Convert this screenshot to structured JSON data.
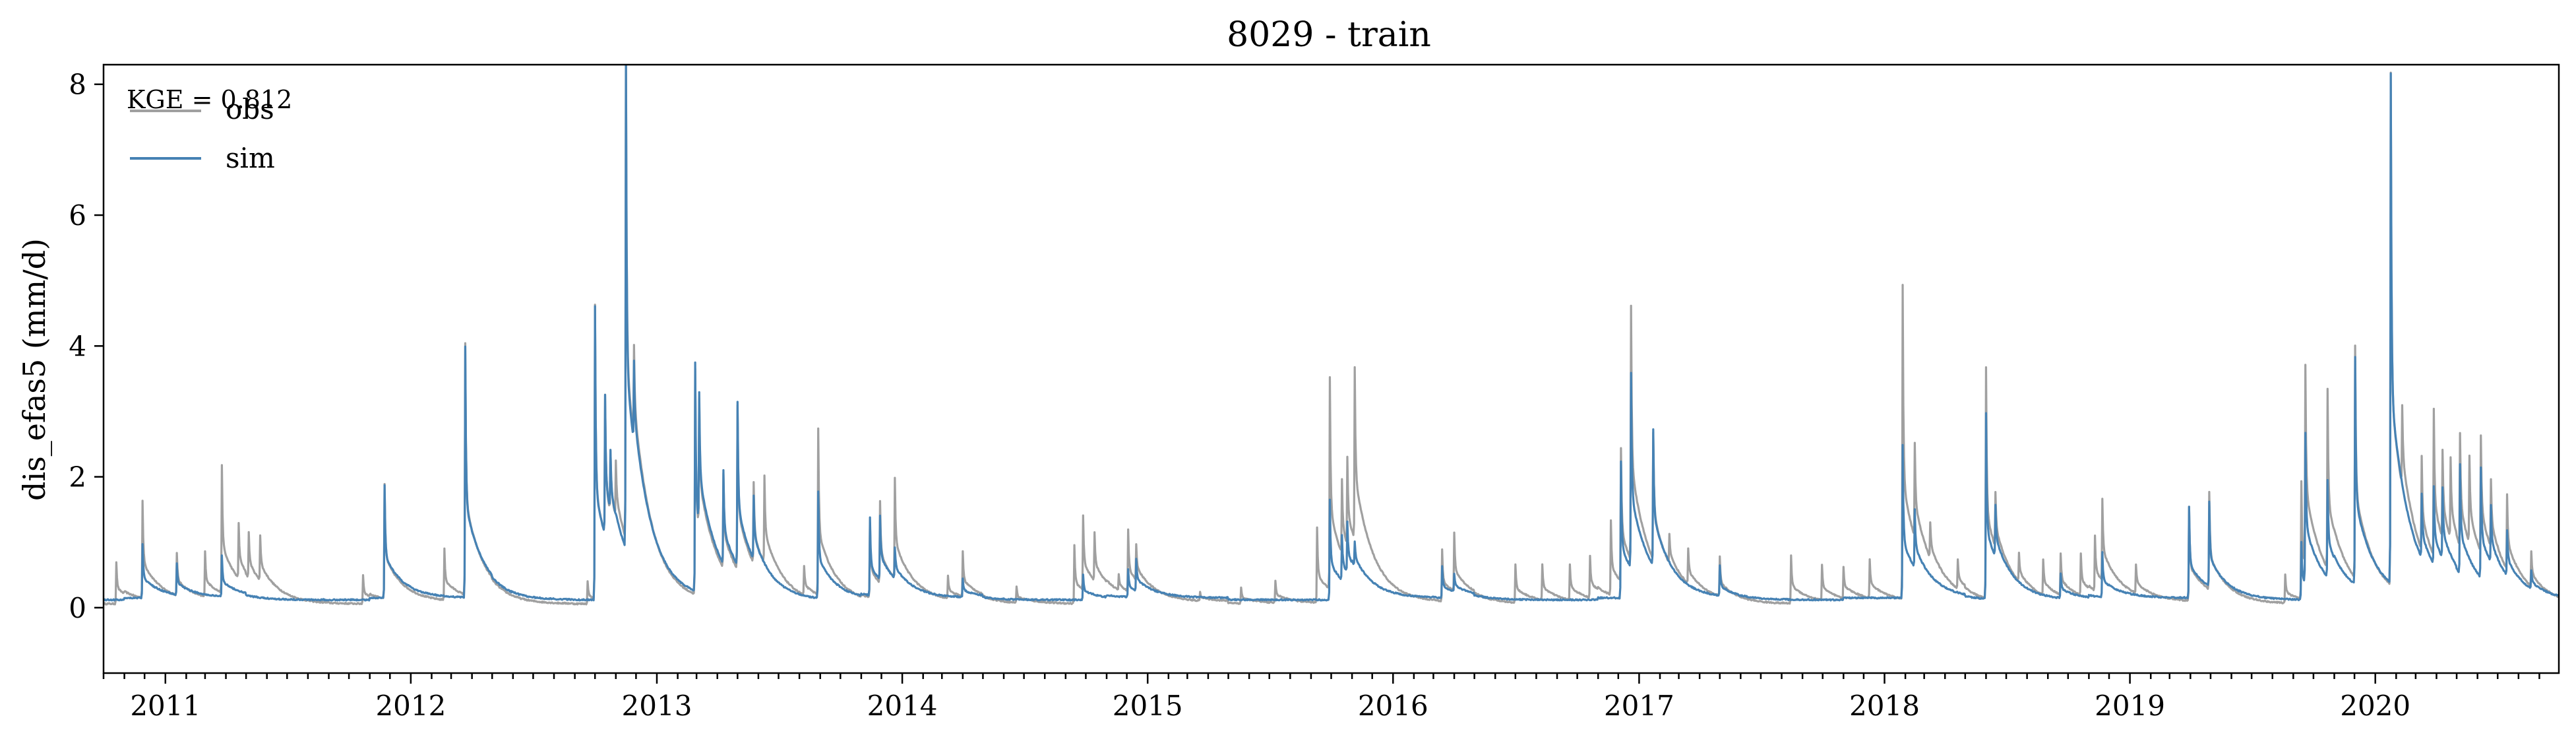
{
  "chart_data": {
    "type": "line",
    "title": "8029 - train",
    "xlabel": "",
    "ylabel": "dis_efas5 (mm/d)",
    "xlim": [
      "2010-10-01",
      "2020-09-30"
    ],
    "ylim": [
      -1,
      8.3
    ],
    "yticks": [
      "0",
      "2",
      "4",
      "6",
      "8"
    ],
    "xticks": [
      "2011",
      "2012",
      "2013",
      "2014",
      "2015",
      "2016",
      "2017",
      "2018",
      "2019",
      "2020"
    ],
    "grid": false,
    "legend_position": "top-left",
    "annotation": "KGE = 0.812",
    "series": [
      {
        "name": "obs",
        "color": "#a0a0a0",
        "baseline": 0.06,
        "peaks": [
          [
            "2010-10-20",
            0.7
          ],
          [
            "2010-11-28",
            1.55
          ],
          [
            "2011-01-18",
            0.7
          ],
          [
            "2011-03-01",
            0.75
          ],
          [
            "2011-03-26",
            2.0
          ],
          [
            "2011-04-20",
            0.9
          ],
          [
            "2011-05-05",
            0.75
          ],
          [
            "2011-05-22",
            0.75
          ],
          [
            "2011-10-22",
            0.5
          ],
          [
            "2011-11-23",
            1.8
          ],
          [
            "2012-02-20",
            0.85
          ],
          [
            "2012-03-22",
            3.9
          ],
          [
            "2012-09-20",
            0.4
          ],
          [
            "2012-10-01",
            4.55
          ],
          [
            "2012-10-16",
            2.2
          ],
          [
            "2012-10-24",
            1.0
          ],
          [
            "2012-11-01",
            0.9
          ],
          [
            "2012-11-16",
            7.6
          ],
          [
            "2012-11-28",
            1.5
          ],
          [
            "2013-02-27",
            3.5
          ],
          [
            "2013-03-05",
            2.0
          ],
          [
            "2013-04-10",
            1.5
          ],
          [
            "2013-05-01",
            2.6
          ],
          [
            "2013-05-25",
            1.3
          ],
          [
            "2013-06-10",
            1.4
          ],
          [
            "2013-08-08",
            0.5
          ],
          [
            "2013-08-29",
            2.6
          ],
          [
            "2013-11-14",
            1.2
          ],
          [
            "2013-11-29",
            1.3
          ],
          [
            "2013-12-21",
            1.6
          ],
          [
            "2014-03-10",
            0.4
          ],
          [
            "2014-04-01",
            0.75
          ],
          [
            "2014-06-20",
            0.3
          ],
          [
            "2014-09-14",
            0.95
          ],
          [
            "2014-09-27",
            1.2
          ],
          [
            "2014-10-14",
            0.8
          ],
          [
            "2014-11-19",
            0.3
          ],
          [
            "2014-12-03",
            1.0
          ],
          [
            "2014-12-15",
            0.6
          ],
          [
            "2015-03-20",
            0.2
          ],
          [
            "2015-05-20",
            0.3
          ],
          [
            "2015-07-10",
            0.4
          ],
          [
            "2015-09-10",
            1.2
          ],
          [
            "2015-09-29",
            3.3
          ],
          [
            "2015-10-17",
            1.2
          ],
          [
            "2015-10-25",
            1.4
          ],
          [
            "2015-11-05",
            2.7
          ],
          [
            "2016-03-14",
            0.85
          ],
          [
            "2016-04-01",
            0.95
          ],
          [
            "2016-07-01",
            0.65
          ],
          [
            "2016-08-10",
            0.6
          ],
          [
            "2016-09-20",
            0.6
          ],
          [
            "2016-10-20",
            0.7
          ],
          [
            "2016-11-20",
            1.2
          ],
          [
            "2016-12-05",
            2.1
          ],
          [
            "2016-12-20",
            3.95
          ],
          [
            "2017-01-22",
            2.0
          ],
          [
            "2017-02-15",
            0.5
          ],
          [
            "2017-03-15",
            0.6
          ],
          [
            "2017-05-01",
            0.7
          ],
          [
            "2017-08-15",
            0.8
          ],
          [
            "2017-09-30",
            0.6
          ],
          [
            "2017-11-01",
            0.5
          ],
          [
            "2017-12-10",
            0.65
          ],
          [
            "2018-01-28",
            4.85
          ],
          [
            "2018-02-15",
            1.5
          ],
          [
            "2018-03-10",
            0.6
          ],
          [
            "2018-04-20",
            0.5
          ],
          [
            "2018-06-01",
            3.6
          ],
          [
            "2018-06-15",
            0.9
          ],
          [
            "2018-07-20",
            0.5
          ],
          [
            "2018-08-25",
            0.6
          ],
          [
            "2018-09-20",
            0.7
          ],
          [
            "2018-10-20",
            0.7
          ],
          [
            "2018-11-10",
            0.9
          ],
          [
            "2018-11-21",
            1.3
          ],
          [
            "2019-01-10",
            0.5
          ],
          [
            "2019-03-30",
            1.5
          ],
          [
            "2019-04-29",
            1.55
          ],
          [
            "2019-08-20",
            0.5
          ],
          [
            "2019-09-13",
            1.85
          ],
          [
            "2019-09-19",
            3.1
          ],
          [
            "2019-10-22",
            2.8
          ],
          [
            "2019-12-02",
            3.6
          ],
          [
            "2020-01-24",
            7.9
          ],
          [
            "2020-02-10",
            1.3
          ],
          [
            "2020-03-10",
            1.5
          ],
          [
            "2020-03-28",
            2.3
          ],
          [
            "2020-04-10",
            1.4
          ],
          [
            "2020-04-22",
            1.3
          ],
          [
            "2020-05-06",
            1.8
          ],
          [
            "2020-05-20",
            1.4
          ],
          [
            "2020-06-06",
            1.85
          ],
          [
            "2020-06-21",
            1.1
          ],
          [
            "2020-07-15",
            1.2
          ],
          [
            "2020-08-20",
            0.6
          ]
        ]
      },
      {
        "name": "sim",
        "color": "#4682b4",
        "baseline": 0.12,
        "peaks": [
          [
            "2010-11-28",
            0.95
          ],
          [
            "2011-01-18",
            0.6
          ],
          [
            "2011-03-26",
            0.75
          ],
          [
            "2011-11-23",
            1.85
          ],
          [
            "2012-03-22",
            3.95
          ],
          [
            "2012-10-01",
            4.6
          ],
          [
            "2012-10-16",
            2.25
          ],
          [
            "2012-10-24",
            1.05
          ],
          [
            "2012-11-16",
            7.65
          ],
          [
            "2012-11-28",
            1.4
          ],
          [
            "2013-02-27",
            3.6
          ],
          [
            "2013-03-05",
            2.1
          ],
          [
            "2013-04-10",
            1.55
          ],
          [
            "2013-05-01",
            2.65
          ],
          [
            "2013-05-25",
            1.1
          ],
          [
            "2013-08-29",
            1.75
          ],
          [
            "2013-11-14",
            1.3
          ],
          [
            "2013-11-29",
            1.1
          ],
          [
            "2013-12-21",
            0.6
          ],
          [
            "2014-04-01",
            0.4
          ],
          [
            "2014-09-27",
            0.5
          ],
          [
            "2014-12-03",
            0.55
          ],
          [
            "2014-12-15",
            0.6
          ],
          [
            "2015-09-29",
            1.65
          ],
          [
            "2015-10-17",
            0.8
          ],
          [
            "2015-10-25",
            0.9
          ],
          [
            "2015-11-05",
            0.5
          ],
          [
            "2016-03-14",
            0.6
          ],
          [
            "2016-04-01",
            0.4
          ],
          [
            "2016-12-05",
            2.2
          ],
          [
            "2016-12-20",
            3.1
          ],
          [
            "2017-01-22",
            2.2
          ],
          [
            "2017-05-01",
            0.6
          ],
          [
            "2018-01-28",
            2.45
          ],
          [
            "2018-02-15",
            1.0
          ],
          [
            "2018-06-01",
            2.95
          ],
          [
            "2018-06-15",
            0.9
          ],
          [
            "2018-09-20",
            0.5
          ],
          [
            "2018-11-21",
            0.8
          ],
          [
            "2019-03-30",
            1.5
          ],
          [
            "2019-04-29",
            1.4
          ],
          [
            "2019-09-13",
            1.0
          ],
          [
            "2019-09-19",
            2.4
          ],
          [
            "2019-10-22",
            1.6
          ],
          [
            "2019-12-02",
            3.6
          ],
          [
            "2020-01-24",
            7.9
          ],
          [
            "2020-03-10",
            1.1
          ],
          [
            "2020-03-28",
            1.3
          ],
          [
            "2020-04-10",
            1.2
          ],
          [
            "2020-05-06",
            1.8
          ],
          [
            "2020-06-06",
            1.8
          ],
          [
            "2020-06-21",
            1.0
          ],
          [
            "2020-07-15",
            0.8
          ],
          [
            "2020-08-20",
            0.4
          ]
        ]
      }
    ]
  }
}
